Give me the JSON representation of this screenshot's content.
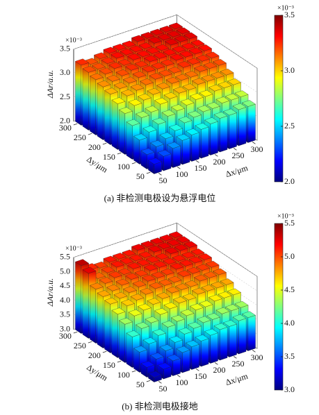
{
  "chart_data": [
    {
      "type": "bar3d",
      "colormap": "jet",
      "x": [
        50,
        75,
        100,
        125,
        150,
        175,
        200,
        225,
        250,
        275,
        300
      ],
      "y": [
        50,
        75,
        100,
        125,
        150,
        175,
        200,
        225,
        250,
        275,
        300
      ],
      "z": [
        [
          2.2,
          2.3,
          2.4,
          2.5,
          2.55,
          2.6,
          2.65,
          2.7,
          2.7,
          2.75,
          2.75
        ],
        [
          2.3,
          2.4,
          2.5,
          2.6,
          2.7,
          2.75,
          2.8,
          2.8,
          2.85,
          2.85,
          2.85
        ],
        [
          2.5,
          2.6,
          2.7,
          2.8,
          2.85,
          2.9,
          2.95,
          2.95,
          3.0,
          3.0,
          3.0
        ],
        [
          2.7,
          2.8,
          2.85,
          2.95,
          3.0,
          3.05,
          3.05,
          3.1,
          3.1,
          3.1,
          3.1
        ],
        [
          2.85,
          2.95,
          3.0,
          3.05,
          3.1,
          3.15,
          3.15,
          3.15,
          3.2,
          3.2,
          3.2
        ],
        [
          2.95,
          3.05,
          3.1,
          3.15,
          3.2,
          3.2,
          3.2,
          3.25,
          3.25,
          3.25,
          3.25
        ],
        [
          3.05,
          3.1,
          3.15,
          3.2,
          3.25,
          3.25,
          3.25,
          3.3,
          3.3,
          3.3,
          3.3
        ],
        [
          3.1,
          3.15,
          3.2,
          3.25,
          3.25,
          3.3,
          3.3,
          3.3,
          3.3,
          3.3,
          3.3
        ],
        [
          3.15,
          3.2,
          3.25,
          3.25,
          3.3,
          3.3,
          3.3,
          3.3,
          3.35,
          3.35,
          3.35
        ],
        [
          3.2,
          3.2,
          3.25,
          3.3,
          3.3,
          3.3,
          3.3,
          3.35,
          3.35,
          3.35,
          3.35
        ],
        [
          3.25,
          3.2,
          3.25,
          3.3,
          3.3,
          3.3,
          3.35,
          3.35,
          3.35,
          3.35,
          3.35
        ]
      ],
      "xlim": [
        50,
        300
      ],
      "ylim": [
        50,
        300
      ],
      "xticks": [
        50,
        100,
        150,
        200,
        250,
        300
      ],
      "yticks": [
        50,
        100,
        150,
        200,
        250,
        300
      ],
      "zlim": [
        2,
        3.5
      ],
      "zticks": [
        {
          "value": 2,
          "label": "2.0"
        },
        {
          "value": 2.5,
          "label": "2.5"
        },
        {
          "value": 3,
          "label": "3.0"
        },
        {
          "value": 3.5,
          "label": "3.5"
        }
      ],
      "xlabel": "Δx/μm",
      "ylabel": "Δy/μm",
      "zlabel": "ΔAr/a.u.",
      "scale_label": "×10⁻³",
      "caption": "(a) 非检测电极设为悬浮电位"
    },
    {
      "type": "bar3d",
      "colormap": "jet",
      "x": [
        50,
        75,
        100,
        125,
        150,
        175,
        200,
        225,
        250,
        275,
        300
      ],
      "y": [
        50,
        75,
        100,
        125,
        150,
        175,
        200,
        225,
        250,
        275,
        300
      ],
      "z": [
        [
          3.16,
          3.34,
          3.52,
          3.7,
          3.79,
          3.88,
          3.97,
          4.06,
          4.06,
          4.15,
          4.15
        ],
        [
          3.34,
          3.52,
          3.7,
          3.88,
          4.06,
          4.15,
          4.24,
          4.24,
          4.33,
          4.33,
          4.33
        ],
        [
          3.7,
          3.88,
          4.06,
          4.24,
          4.33,
          4.42,
          4.51,
          4.51,
          4.6,
          4.6,
          4.6
        ],
        [
          4.06,
          4.24,
          4.33,
          4.51,
          4.6,
          4.69,
          4.69,
          4.78,
          4.78,
          4.78,
          4.78
        ],
        [
          4.33,
          4.51,
          4.6,
          4.69,
          4.78,
          4.87,
          4.87,
          4.87,
          4.96,
          4.96,
          4.96
        ],
        [
          4.51,
          4.69,
          4.78,
          4.87,
          4.96,
          4.96,
          4.96,
          5.05,
          5.05,
          5.05,
          5.05
        ],
        [
          4.69,
          4.78,
          4.87,
          4.96,
          5.05,
          5.05,
          5.05,
          5.14,
          5.14,
          5.14,
          5.14
        ],
        [
          4.78,
          4.87,
          4.96,
          5.05,
          5.05,
          5.14,
          5.14,
          5.14,
          5.14,
          5.14,
          5.14
        ],
        [
          4.87,
          4.96,
          5.05,
          5.05,
          5.14,
          5.14,
          5.14,
          5.14,
          5.23,
          5.23,
          5.23
        ],
        [
          5.25,
          4.96,
          5.05,
          5.14,
          5.14,
          5.14,
          5.14,
          5.23,
          5.23,
          5.23,
          5.23
        ],
        [
          5.35,
          5.1,
          5.05,
          5.14,
          5.14,
          5.14,
          5.23,
          5.23,
          5.23,
          5.23,
          5.23
        ]
      ],
      "xlim": [
        50,
        300
      ],
      "ylim": [
        50,
        300
      ],
      "xticks": [
        50,
        100,
        150,
        200,
        250,
        300
      ],
      "yticks": [
        50,
        100,
        150,
        200,
        250,
        300
      ],
      "zlim": [
        3,
        5.5
      ],
      "zticks": [
        {
          "value": 3,
          "label": "3.0"
        },
        {
          "value": 3.5,
          "label": "3.5"
        },
        {
          "value": 4,
          "label": "4.0"
        },
        {
          "value": 4.5,
          "label": "4.5"
        },
        {
          "value": 5,
          "label": "5.0"
        },
        {
          "value": 5.5,
          "label": "5.5"
        }
      ],
      "xlabel": "Δx/μm",
      "ylabel": "Δy/μm",
      "zlabel": "ΔAr/a.u.",
      "scale_label": "×10⁻³",
      "caption": "(b) 非检测电极接地"
    }
  ]
}
